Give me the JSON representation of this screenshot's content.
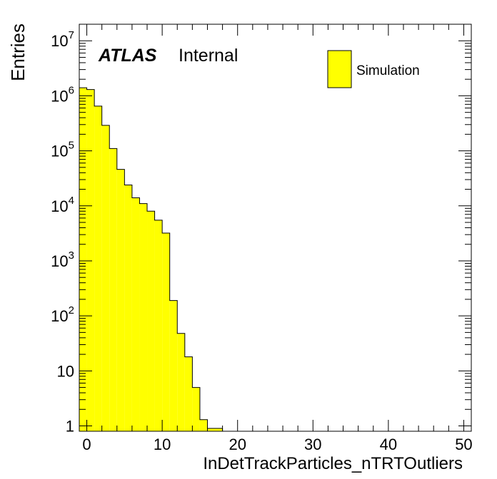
{
  "chart_data": {
    "type": "histogram",
    "title": "",
    "xlabel": "InDetTrackParticles_nTRTOutliers",
    "ylabel": "Entries",
    "xlim": [
      -1,
      51
    ],
    "ylim": [
      0.8,
      20000000
    ],
    "yscale": "log",
    "x_ticks": [
      "0",
      "10",
      "20",
      "30",
      "40",
      "50"
    ],
    "y_tick_bases": [
      "10",
      "10",
      "10",
      "10",
      "10",
      "10",
      "1"
    ],
    "y_tick_exponents": [
      "7",
      "6",
      "5",
      "4",
      "3",
      "2",
      ""
    ],
    "bin_width": 1,
    "bins_low_edge": [
      -1,
      0,
      1,
      2,
      3,
      4,
      5,
      6,
      7,
      8,
      9,
      10,
      11,
      12,
      13,
      14,
      15,
      16,
      17
    ],
    "values": [
      1400000,
      1300000,
      650000,
      290000,
      110000,
      46000,
      24000,
      14000,
      11000,
      8000,
      5500,
      3200,
      190,
      48,
      18,
      5,
      1.3,
      0.9,
      0.9
    ],
    "series": [
      {
        "name": "Simulation",
        "color": "#ffff00",
        "edge_color": "#000000"
      }
    ],
    "annotations": {
      "atlas": "ATLAS",
      "status": "Internal"
    },
    "legend_position": "top-right",
    "grid": false
  }
}
